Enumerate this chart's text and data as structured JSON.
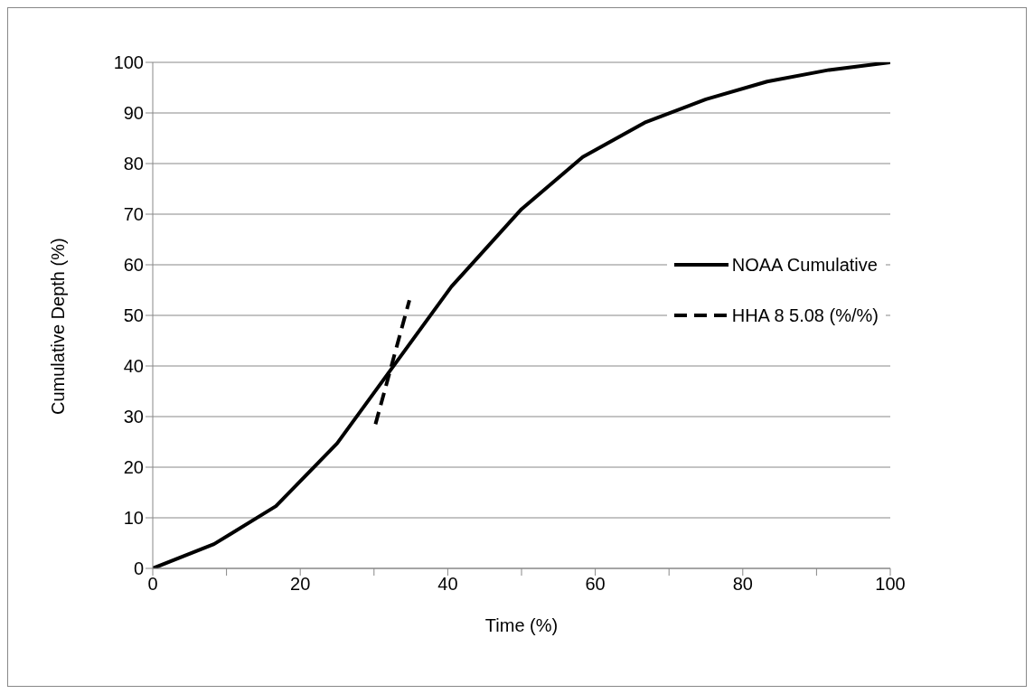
{
  "chart_data": {
    "type": "line",
    "xlabel": "Time (%)",
    "ylabel": "Cumulative Depth (%)",
    "xlim": [
      0,
      100
    ],
    "xticks": [
      0,
      {
        "value": 10,
        "label": null
      },
      20,
      {
        "value": 30,
        "label": null
      },
      40,
      {
        "value": 50,
        "label": null
      },
      60,
      {
        "value": 70,
        "label": null
      },
      80,
      {
        "value": 90,
        "label": null
      },
      100
    ],
    "ylim": [
      0,
      100
    ],
    "yticks": [
      0,
      10,
      20,
      30,
      40,
      50,
      60,
      70,
      80,
      90,
      100
    ],
    "grid": "y",
    "legend": "right",
    "marker": "none",
    "series": [
      {
        "name": "NOAA Cumulative",
        "color": "#000000",
        "line_style": "solid",
        "x": [
          0,
          8.3,
          16.7,
          25,
          40.5,
          50,
          58.3,
          66.7,
          75,
          83.3,
          91.7,
          100
        ],
        "values": [
          0,
          4.8,
          12.3,
          24.7,
          55.7,
          71,
          81.3,
          88.1,
          92.7,
          96.2,
          98.5,
          100
        ]
      },
      {
        "name": "HHA 8 5.08 (%/%)",
        "color": "#000000",
        "line_style": "dashed",
        "x": [
          30.2,
          34.8
        ],
        "values": [
          28.5,
          53
        ]
      }
    ]
  }
}
